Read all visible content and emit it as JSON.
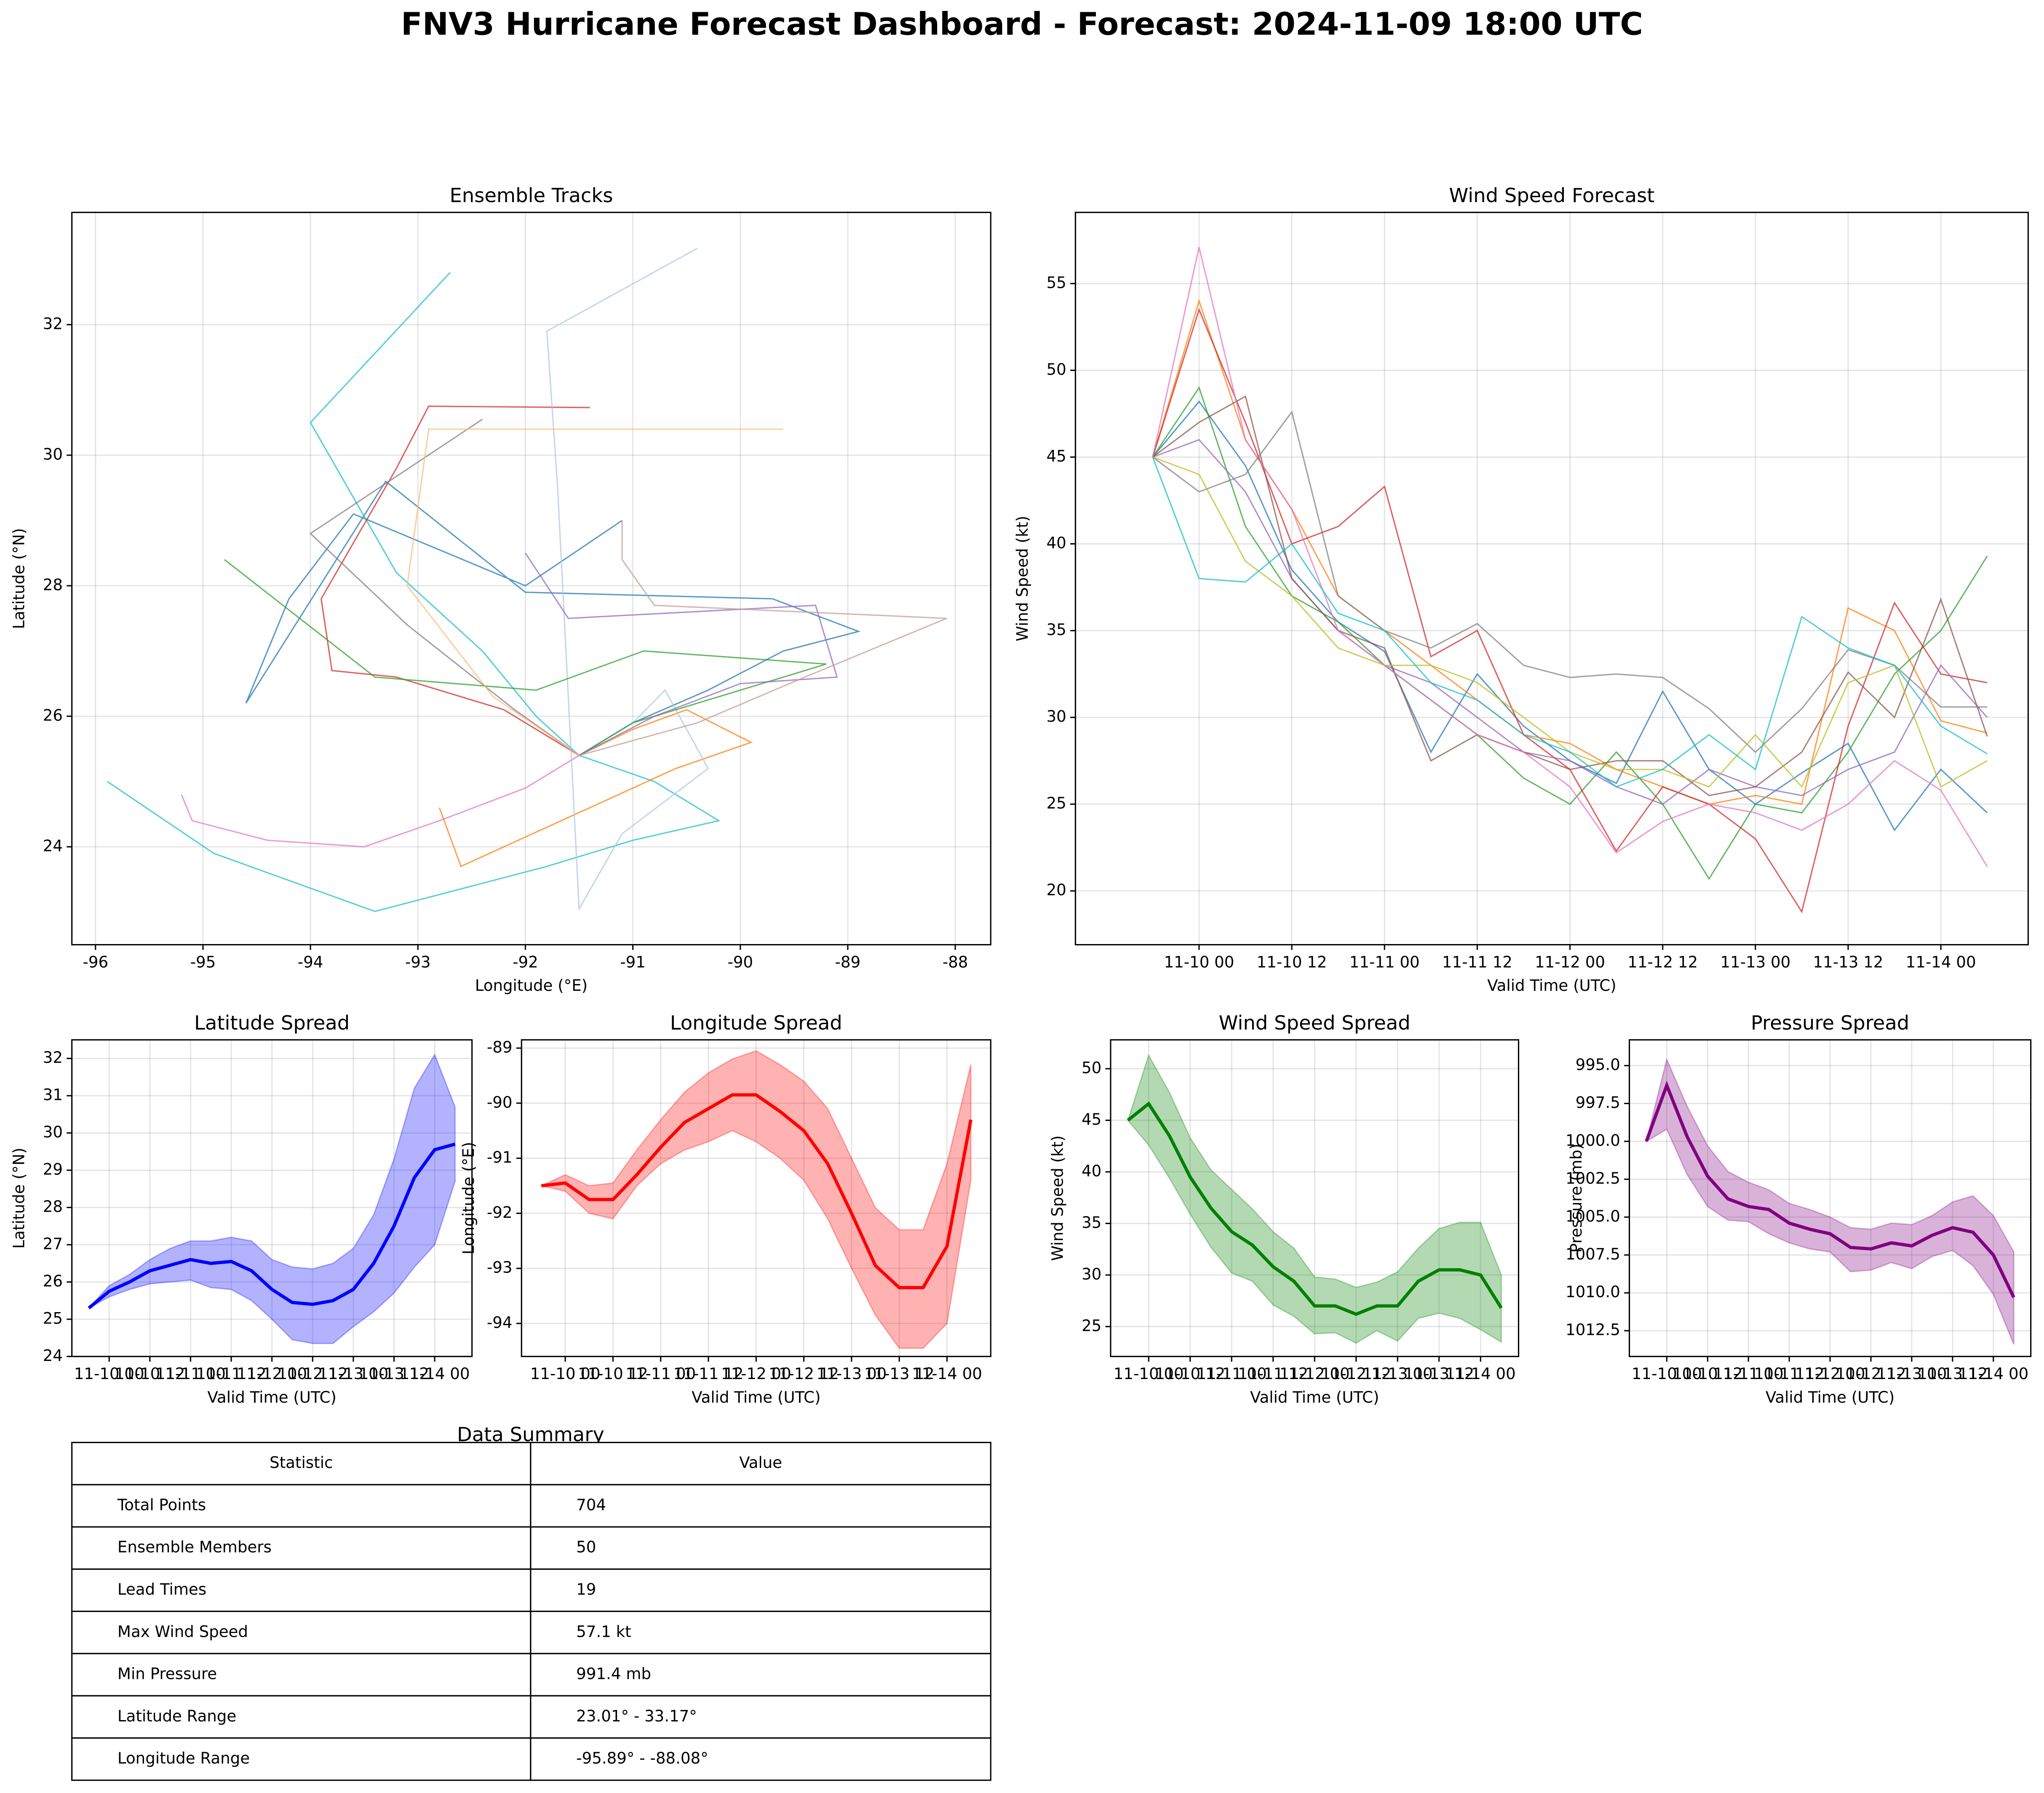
{
  "title": "FNV3 Hurricane Forecast Dashboard - Forecast: 2024-11-09 18:00 UTC",
  "chart_data": [
    {
      "type": "line",
      "title": "Ensemble Tracks",
      "x_label": "Longitude (°E)",
      "y_label": "Latitude (°N)",
      "xlim": [
        -96.22,
        -87.67
      ],
      "ylim": [
        22.5,
        33.72
      ],
      "xticks": [
        -96,
        -95,
        -94,
        -93,
        -92,
        -91,
        -90,
        -89,
        -88
      ],
      "yticks": [
        24,
        26,
        28,
        30,
        32
      ],
      "grid": true,
      "series": [
        {
          "color": "#1f77b4",
          "x": [
            -91.5,
            -91.0,
            -90.3,
            -89.6,
            -88.9,
            -89.7,
            -92.0,
            -93.3,
            -94.6,
            -94.2,
            -93.6,
            -92.0,
            -91.1
          ],
          "values": [
            25.4,
            25.9,
            26.4,
            27.0,
            27.3,
            27.8,
            27.9,
            29.6,
            26.2,
            27.8,
            29.1,
            28.0,
            29.0
          ]
        },
        {
          "color": "#17becf",
          "x": [
            -91.5,
            -90.8,
            -90.2,
            -91.0,
            -91.8,
            -93.4,
            -94.9,
            -95.89
          ],
          "values": [
            25.4,
            25.0,
            24.4,
            24.1,
            23.7,
            23.01,
            23.9,
            25.0
          ]
        },
        {
          "color": "#17becf",
          "x": [
            -91.5,
            -91.9,
            -92.4,
            -93.2,
            -94.0,
            -92.7
          ],
          "values": [
            25.4,
            26.0,
            27.0,
            28.2,
            30.5,
            32.8
          ]
        },
        {
          "color": "#d62728",
          "x": [
            -91.5,
            -92.2,
            -93.2,
            -93.8,
            -93.9,
            -93.2,
            -92.9,
            -91.4
          ],
          "values": [
            25.4,
            26.1,
            26.6,
            26.7,
            27.8,
            29.8,
            30.75,
            30.73
          ]
        },
        {
          "color": "#ff7f0e",
          "x": [
            -91.5,
            -91.0,
            -90.5,
            -89.9,
            -90.6,
            -91.4,
            -92.6,
            -92.8
          ],
          "values": [
            25.4,
            25.8,
            26.1,
            25.6,
            25.2,
            24.6,
            23.7,
            24.6
          ]
        },
        {
          "color": "#e377c2",
          "x": [
            -91.5,
            -92.0,
            -92.8,
            -93.5,
            -94.4,
            -95.1,
            -95.2
          ],
          "values": [
            25.4,
            24.9,
            24.4,
            24.0,
            24.1,
            24.4,
            24.8
          ]
        },
        {
          "color": "#aec7e8",
          "x": [
            -91.5,
            -91.0,
            -90.7,
            -90.3,
            -91.1,
            -91.5,
            -91.7,
            -91.8,
            -90.4
          ],
          "values": [
            25.4,
            25.9,
            26.4,
            25.2,
            24.2,
            23.05,
            29.5,
            31.9,
            33.17
          ]
        },
        {
          "color": "#7f7f7f",
          "x": [
            -91.5,
            -92.1,
            -93.1,
            -94.0,
            -92.4
          ],
          "values": [
            25.4,
            26.1,
            27.4,
            28.8,
            30.55
          ]
        },
        {
          "color": "#2ca02c",
          "x": [
            -91.5,
            -91.0,
            -90.2,
            -89.2,
            -90.9,
            -91.9,
            -93.4,
            -94.8
          ],
          "values": [
            25.4,
            25.9,
            26.3,
            26.8,
            27.0,
            26.4,
            26.6,
            28.4
          ]
        },
        {
          "color": "#9467bd",
          "x": [
            -91.5,
            -90.8,
            -90.0,
            -89.1,
            -89.3,
            -91.6,
            -92.0
          ],
          "values": [
            25.4,
            26.0,
            26.5,
            26.6,
            27.7,
            27.5,
            28.5
          ]
        },
        {
          "color": "#c49c94",
          "x": [
            -91.5,
            -90.4,
            -89.4,
            -88.08,
            -90.8,
            -91.1,
            -91.1
          ],
          "values": [
            25.4,
            25.9,
            26.6,
            27.5,
            27.7,
            28.4,
            29.0
          ]
        },
        {
          "color": "#ffbb78",
          "x": [
            -91.5,
            -92.3,
            -93.1,
            -92.9,
            -91.0,
            -89.6
          ],
          "values": [
            25.4,
            26.3,
            28.0,
            30.4,
            30.4,
            30.4
          ]
        }
      ]
    },
    {
      "type": "line",
      "title": "Wind Speed Forecast",
      "x_label": "Valid Time (UTC)",
      "y_label": "Wind Speed (kt)",
      "xlim": [
        "11-09 08:00",
        "11-14 11:18"
      ],
      "ylim": [
        16.9,
        59.1
      ],
      "xticks": [
        "11-10 00",
        "11-10 12",
        "11-11 00",
        "11-11 12",
        "11-12 00",
        "11-12 12",
        "11-13 00",
        "11-13 12",
        "11-14 00"
      ],
      "yticks": [
        20,
        25,
        30,
        35,
        40,
        45,
        50,
        55
      ],
      "grid": true,
      "x": [
        "11-09 18",
        "11-10 00",
        "11-10 06",
        "11-10 12",
        "11-10 18",
        "11-11 00",
        "11-11 06",
        "11-11 12",
        "11-11 18",
        "11-12 00",
        "11-12 06",
        "11-12 12",
        "11-12 18",
        "11-13 00",
        "11-13 06",
        "11-13 12",
        "11-13 18",
        "11-14 00",
        "11-14 06"
      ],
      "series": [
        {
          "color": "#1f77b4",
          "values": [
            45,
            48.2,
            44.5,
            38.5,
            35.5,
            33.8,
            28,
            32.5,
            29.5,
            27.5,
            26.2,
            31.5,
            27,
            25,
            26.8,
            28.5,
            23.5,
            27,
            24.5
          ]
        },
        {
          "color": "#ff7f0e",
          "values": [
            45,
            54,
            46,
            42,
            37,
            35,
            33,
            31,
            29,
            28.5,
            27,
            26,
            25,
            25.5,
            25,
            36.3,
            35,
            29.8,
            29.1
          ]
        },
        {
          "color": "#2ca02c",
          "values": [
            45,
            49,
            41,
            37,
            35.5,
            33,
            31,
            29,
            26.5,
            25,
            28,
            25,
            20.7,
            25,
            24.5,
            28,
            32.5,
            35,
            39.3
          ]
        },
        {
          "color": "#d62728",
          "values": [
            45,
            53.5,
            47,
            40,
            41,
            43.3,
            33.5,
            35,
            29,
            27,
            22.3,
            26,
            25,
            23,
            18.8,
            29.5,
            36.6,
            32.5,
            32
          ]
        },
        {
          "color": "#9467bd",
          "values": [
            45,
            46,
            43,
            38,
            35,
            33,
            32,
            30,
            28,
            27.5,
            26,
            25,
            27,
            26,
            25.5,
            27,
            28,
            33,
            30
          ]
        },
        {
          "color": "#8c564b",
          "values": [
            45,
            47,
            48.5,
            38,
            35,
            34,
            27.5,
            29,
            28,
            27,
            27.5,
            27.5,
            25.5,
            26,
            28,
            32.6,
            30,
            36.8,
            28.9
          ]
        },
        {
          "color": "#e377c2",
          "values": [
            45,
            57.1,
            46,
            42,
            35,
            33,
            31,
            29,
            28,
            26,
            22.2,
            24,
            25,
            24.5,
            23.5,
            25,
            27.5,
            25.8,
            21.4
          ]
        },
        {
          "color": "#7f7f7f",
          "values": [
            45,
            43,
            44,
            47.6,
            37,
            35,
            34,
            35.4,
            33,
            32.3,
            32.5,
            32.3,
            30.5,
            28,
            30.5,
            33.9,
            33,
            30.6,
            30.6
          ]
        },
        {
          "color": "#bcbd22",
          "values": [
            45,
            44,
            39,
            37,
            34,
            33,
            33,
            32,
            30,
            28,
            27,
            27,
            26,
            29,
            26,
            32,
            33,
            26,
            27.5
          ]
        },
        {
          "color": "#17becf",
          "values": [
            45,
            38,
            37.8,
            40,
            36,
            35,
            32,
            31,
            29,
            28,
            26,
            27,
            29,
            27,
            35.8,
            34,
            33,
            29.5,
            27.9
          ]
        }
      ]
    },
    {
      "type": "band",
      "title": "Latitude Spread",
      "x_label": "Valid Time (UTC)",
      "y_label": "Latitude (°N)",
      "color": "#0000ff",
      "xlim": [
        "11-09 13",
        "11-14 11"
      ],
      "ylim": [
        24.0,
        32.5
      ],
      "yticks": [
        24,
        25,
        26,
        27,
        28,
        29,
        30,
        31,
        32
      ],
      "grid": true,
      "xticks": [
        "11-10 00",
        "11-10 12",
        "11-11 00",
        "11-11 12",
        "11-12 00",
        "11-12 12",
        "11-13 00",
        "11-13 12",
        "11-14 00"
      ],
      "x": [
        "11-09 18",
        "11-10 00",
        "11-10 06",
        "11-10 12",
        "11-10 18",
        "11-11 00",
        "11-11 06",
        "11-11 12",
        "11-11 18",
        "11-12 00",
        "11-12 06",
        "11-12 12",
        "11-12 18",
        "11-13 00",
        "11-13 06",
        "11-13 12",
        "11-13 18",
        "11-14 00",
        "11-14 06"
      ],
      "values": [
        25.3,
        25.75,
        26.0,
        26.3,
        26.45,
        26.6,
        26.5,
        26.55,
        26.3,
        25.8,
        25.45,
        25.4,
        25.5,
        25.8,
        26.5,
        27.5,
        28.8,
        29.55,
        29.7
      ],
      "band_lower": [
        25.3,
        25.6,
        25.8,
        25.95,
        26.0,
        26.05,
        25.85,
        25.8,
        25.5,
        25.0,
        24.45,
        24.35,
        24.35,
        24.8,
        25.2,
        25.7,
        26.4,
        27.0,
        28.7
      ],
      "band_upper": [
        25.3,
        25.9,
        26.2,
        26.6,
        26.9,
        27.1,
        27.1,
        27.2,
        27.1,
        26.6,
        26.4,
        26.35,
        26.5,
        26.9,
        27.8,
        29.3,
        31.2,
        32.1,
        30.7
      ]
    },
    {
      "type": "band",
      "title": "Longitude Spread",
      "x_label": "Valid Time (UTC)",
      "y_label": "Longitude (°E)",
      "color": "#ff0000",
      "xlim": [
        "11-09 13",
        "11-14 11"
      ],
      "ylim": [
        -94.6,
        -88.85
      ],
      "yticks": [
        -94,
        -93,
        -92,
        -91,
        -90,
        -89
      ],
      "grid": true,
      "xticks": [
        "11-10 00",
        "11-10 12",
        "11-11 00",
        "11-11 12",
        "11-12 00",
        "11-12 12",
        "11-13 00",
        "11-13 12",
        "11-14 00"
      ],
      "x": [
        "11-09 18",
        "11-10 00",
        "11-10 06",
        "11-10 12",
        "11-10 18",
        "11-11 00",
        "11-11 06",
        "11-11 12",
        "11-11 18",
        "11-12 00",
        "11-12 06",
        "11-12 12",
        "11-12 18",
        "11-13 00",
        "11-13 06",
        "11-13 12",
        "11-13 18",
        "11-14 00",
        "11-14 06"
      ],
      "values": [
        -91.5,
        -91.45,
        -91.75,
        -91.75,
        -91.3,
        -90.8,
        -90.35,
        -90.1,
        -89.85,
        -89.85,
        -90.15,
        -90.5,
        -91.1,
        -92.0,
        -92.95,
        -93.35,
        -93.35,
        -92.6,
        -90.3
      ],
      "band_lower": [
        -91.5,
        -91.6,
        -92.0,
        -92.1,
        -91.5,
        -91.1,
        -90.85,
        -90.7,
        -90.5,
        -90.7,
        -91.0,
        -91.4,
        -92.1,
        -93.0,
        -93.85,
        -94.45,
        -94.45,
        -94.0,
        -91.4
      ],
      "band_upper": [
        -91.5,
        -91.3,
        -91.5,
        -91.45,
        -90.85,
        -90.3,
        -89.8,
        -89.45,
        -89.2,
        -89.05,
        -89.3,
        -89.6,
        -90.1,
        -91.0,
        -91.9,
        -92.3,
        -92.3,
        -91.1,
        -89.3
      ]
    },
    {
      "type": "band",
      "title": "Wind Speed Spread",
      "x_label": "Valid Time (UTC)",
      "y_label": "Wind Speed (kt)",
      "color": "#008000",
      "xlim": [
        "11-09 13",
        "11-14 11"
      ],
      "ylim": [
        22.1,
        52.8
      ],
      "yticks": [
        25,
        30,
        35,
        40,
        45,
        50
      ],
      "grid": true,
      "xticks": [
        "11-10 00",
        "11-10 12",
        "11-11 00",
        "11-11 12",
        "11-12 00",
        "11-12 12",
        "11-13 00",
        "11-13 12",
        "11-14 00"
      ],
      "x": [
        "11-09 18",
        "11-10 00",
        "11-10 06",
        "11-10 12",
        "11-10 18",
        "11-11 00",
        "11-11 06",
        "11-11 12",
        "11-11 18",
        "11-12 00",
        "11-12 06",
        "11-12 12",
        "11-12 18",
        "11-13 00",
        "11-13 06",
        "11-13 12",
        "11-13 18",
        "11-14 00",
        "11-14 06"
      ],
      "values": [
        45,
        46.6,
        43.5,
        39.5,
        36.5,
        34.2,
        32.9,
        30.8,
        29.4,
        27.0,
        27.0,
        26.2,
        27.0,
        27.0,
        29.4,
        30.5,
        30.5,
        30.0,
        26.8
      ],
      "band_lower": [
        45,
        42.6,
        39.4,
        35.9,
        32.7,
        30.2,
        29.4,
        27.1,
        26.0,
        24.3,
        24.4,
        23.4,
        24.6,
        23.6,
        25.8,
        26.3,
        25.8,
        24.7,
        23.5
      ],
      "band_upper": [
        45,
        51.3,
        47.7,
        43.3,
        40.2,
        38.3,
        36.4,
        34.2,
        32.6,
        29.8,
        29.6,
        28.8,
        29.3,
        30.3,
        32.6,
        34.5,
        35.1,
        35.1,
        30.0
      ]
    },
    {
      "type": "band",
      "title": "Pressure Spread",
      "x_label": "Valid Time (UTC)",
      "y_label": "Pressure (mb)",
      "color": "#800080",
      "xlim": [
        "11-09 13",
        "11-14 11"
      ],
      "ylim": [
        1014.2,
        993.3
      ],
      "grid": true,
      "yticks": [
        {
          "value": 995,
          "label": "995.0"
        },
        {
          "value": 997.5,
          "label": "997.5"
        },
        {
          "value": 1000,
          "label": "1000.0"
        },
        {
          "value": 1002.5,
          "label": "1002.5"
        },
        {
          "value": 1005,
          "label": "1005.0"
        },
        {
          "value": 1007.5,
          "label": "1007.5"
        },
        {
          "value": 1010,
          "label": "1010.0"
        },
        {
          "value": 1012.5,
          "label": "1012.5"
        }
      ],
      "xticks": [
        "11-10 00",
        "11-10 12",
        "11-11 00",
        "11-11 12",
        "11-12 00",
        "11-12 12",
        "11-13 00",
        "11-13 12",
        "11-14 00"
      ],
      "x": [
        "11-09 18",
        "11-10 00",
        "11-10 06",
        "11-10 12",
        "11-10 18",
        "11-11 00",
        "11-11 06",
        "11-11 12",
        "11-11 18",
        "11-12 00",
        "11-12 06",
        "11-12 12",
        "11-12 18",
        "11-13 00",
        "11-13 06",
        "11-13 12",
        "11-13 18",
        "11-14 00",
        "11-14 06"
      ],
      "values": [
        1000,
        996.3,
        999.7,
        1002.3,
        1003.8,
        1004.3,
        1004.5,
        1005.4,
        1005.8,
        1006.1,
        1007.0,
        1007.1,
        1006.7,
        1006.9,
        1006.2,
        1005.7,
        1006.0,
        1007.5,
        1010.3
      ],
      "band_lower": [
        1000,
        999.2,
        1002.2,
        1004.3,
        1005.2,
        1005.3,
        1006.1,
        1006.7,
        1007.1,
        1007.3,
        1008.6,
        1008.5,
        1008.0,
        1008.4,
        1007.6,
        1007.2,
        1008.2,
        1010.1,
        1013.4
      ],
      "band_upper": [
        1000,
        994.6,
        997.7,
        1000.3,
        1002.0,
        1002.7,
        1003.2,
        1004.1,
        1004.5,
        1005.0,
        1005.7,
        1005.8,
        1005.4,
        1005.5,
        1004.9,
        1004.0,
        1003.6,
        1004.9,
        1007.3
      ]
    }
  ],
  "table": {
    "title": "Data Summary",
    "header": [
      "Statistic",
      "Value"
    ],
    "rows": [
      [
        "Total Points",
        "704"
      ],
      [
        "Ensemble Members",
        "50"
      ],
      [
        "Lead Times",
        "19"
      ],
      [
        "Max Wind Speed",
        "57.1 kt"
      ],
      [
        "Min Pressure",
        "991.4 mb"
      ],
      [
        "Latitude Range",
        "23.01° - 33.17°"
      ],
      [
        "Longitude Range",
        "-95.89° - -88.08°"
      ]
    ]
  }
}
